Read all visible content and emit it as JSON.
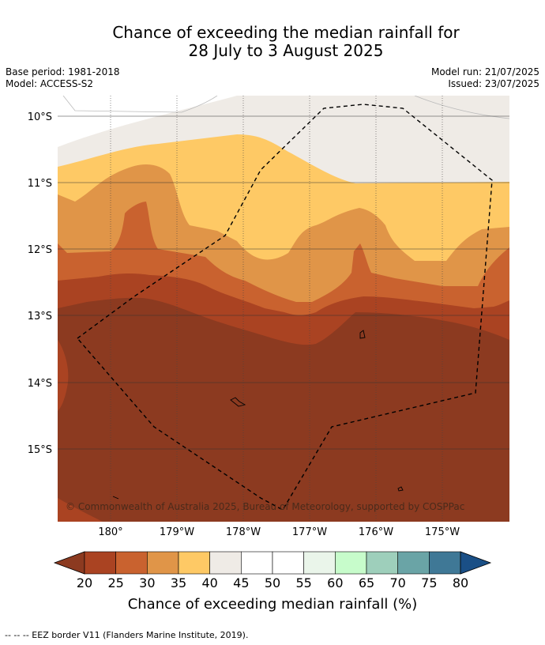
{
  "title_line1": "Chance of exceeding the median rainfall for",
  "title_line2": "28 July to 3 August 2025",
  "meta_left": [
    "Base period: 1981-2018",
    "Model: ACCESS-S2"
  ],
  "meta_right": [
    "Model run: 21/07/2025",
    "Issued: 23/07/2025"
  ],
  "y_ticks": [
    "10°S",
    "11°S",
    "12°S",
    "13°S",
    "14°S",
    "15°S"
  ],
  "x_ticks": [
    "180°",
    "179°W",
    "178°W",
    "177°W",
    "176°W",
    "175°W"
  ],
  "copyright": "© Commonwealth of Australia 2025, Bureau of Meteorology, supported by COSPPac",
  "colorbar": {
    "label": "Chance of exceeding median rainfall (%)",
    "ticks": [
      "20",
      "25",
      "30",
      "35",
      "40",
      "45",
      "50",
      "55",
      "60",
      "65",
      "70",
      "75",
      "80"
    ],
    "colors": [
      "#8c3a20",
      "#aa4322",
      "#c9622f",
      "#e09548",
      "#fec965",
      "#efebe6",
      "#ffffff",
      "#ffffff",
      "#eaf5ea",
      "#c7fccb",
      "#9ecfbb",
      "#6aa4a6",
      "#3f7896",
      "#1a4f86"
    ]
  },
  "footer": "--  --  -- EEZ border V11 (Flanders Marine Institute, 2019)."
}
